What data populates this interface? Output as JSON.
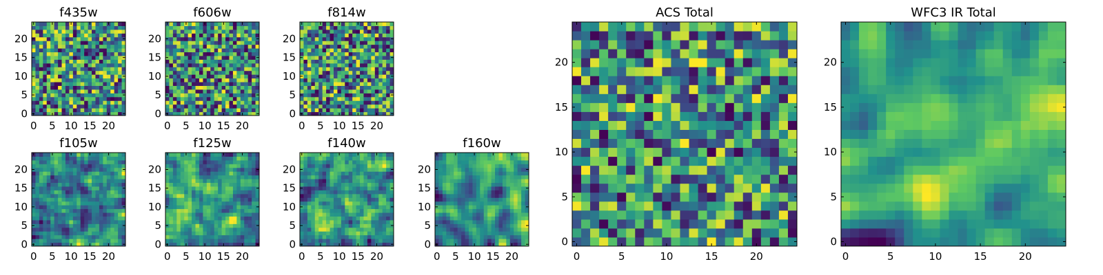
{
  "colormap": [
    "#440154",
    "#3b528b",
    "#21918c",
    "#5ec962",
    "#fde725"
  ],
  "chart_data": [
    {
      "type": "heatmap",
      "title": "f435w",
      "size": 25,
      "seed": 11,
      "smooth": 0,
      "xticks": [
        0,
        5,
        10,
        15,
        20
      ],
      "yticks": [
        0,
        5,
        10,
        15,
        20
      ],
      "xlim": [
        0,
        25
      ],
      "ylim": [
        0,
        25
      ]
    },
    {
      "type": "heatmap",
      "title": "f606w",
      "size": 25,
      "seed": 23,
      "smooth": 0,
      "xticks": [
        0,
        5,
        10,
        15,
        20
      ],
      "yticks": [
        0,
        5,
        10,
        15,
        20
      ],
      "xlim": [
        0,
        25
      ],
      "ylim": [
        0,
        25
      ]
    },
    {
      "type": "heatmap",
      "title": "f814w",
      "size": 25,
      "seed": 37,
      "smooth": 0,
      "xticks": [
        0,
        5,
        10,
        15,
        20
      ],
      "yticks": [
        0,
        5,
        10,
        15,
        20
      ],
      "xlim": [
        0,
        25
      ],
      "ylim": [
        0,
        25
      ]
    },
    {
      "type": "heatmap",
      "title": "f105w",
      "size": 25,
      "seed": 41,
      "smooth": 1,
      "xticks": [
        0,
        5,
        10,
        15,
        20
      ],
      "yticks": [
        0,
        5,
        10,
        15,
        20
      ],
      "xlim": [
        0,
        25
      ],
      "ylim": [
        0,
        25
      ]
    },
    {
      "type": "heatmap",
      "title": "f125w",
      "size": 25,
      "seed": 53,
      "smooth": 1,
      "xticks": [
        0,
        5,
        10,
        15,
        20
      ],
      "yticks": [
        0,
        5,
        10,
        15,
        20
      ],
      "xlim": [
        0,
        25
      ],
      "ylim": [
        0,
        25
      ]
    },
    {
      "type": "heatmap",
      "title": "f140w",
      "size": 25,
      "seed": 67,
      "smooth": 1,
      "xticks": [
        0,
        5,
        10,
        15,
        20
      ],
      "yticks": [
        0,
        5,
        10,
        15,
        20
      ],
      "xlim": [
        0,
        25
      ],
      "ylim": [
        0,
        25
      ]
    },
    {
      "type": "heatmap",
      "title": "f160w",
      "size": 25,
      "seed": 79,
      "smooth": 2,
      "xticks": [
        0,
        5,
        10,
        15,
        20
      ],
      "yticks": [
        0,
        5,
        10,
        15,
        20
      ],
      "xlim": [
        0,
        25
      ],
      "ylim": [
        0,
        25
      ]
    },
    {
      "type": "heatmap",
      "title": "ACS Total",
      "size": 25,
      "seed": 89,
      "smooth": 0,
      "xticks": [
        0,
        5,
        10,
        15,
        20
      ],
      "yticks": [
        0,
        5,
        10,
        15,
        20
      ],
      "xlim": [
        0,
        25
      ],
      "ylim": [
        0,
        25
      ]
    },
    {
      "type": "heatmap",
      "title": "WFC3 IR Total",
      "size": 25,
      "seed": 97,
      "smooth": 2,
      "xticks": [
        0,
        5,
        10,
        15,
        20
      ],
      "yticks": [
        0,
        5,
        10,
        15,
        20
      ],
      "xlim": [
        0,
        25
      ],
      "ylim": [
        0,
        25
      ]
    }
  ]
}
